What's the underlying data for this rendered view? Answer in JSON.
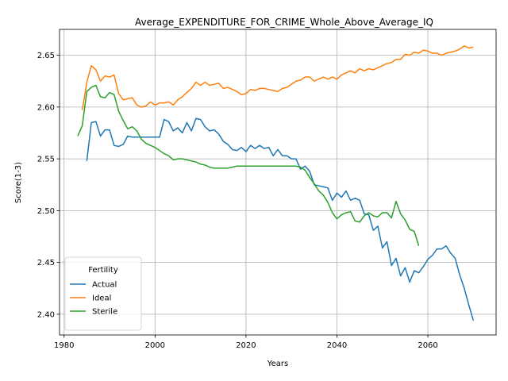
{
  "chart_data": {
    "type": "line",
    "title": "Average_EXPENDITURE_FOR_CRIME_Whole_Above_Average_IQ",
    "xlabel": "Years",
    "ylabel": "Score(1-3)",
    "xlim": [
      1979,
      2075
    ],
    "ylim": [
      2.38,
      2.675
    ],
    "xticks": [
      1980,
      2000,
      2020,
      2040,
      2060
    ],
    "yticks": [
      2.4,
      2.45,
      2.5,
      2.55,
      2.6,
      2.65
    ],
    "xtick_labels": [
      "1980",
      "2000",
      "2020",
      "2040",
      "2060"
    ],
    "ytick_labels": [
      "2.40",
      "2.45",
      "2.50",
      "2.55",
      "2.60",
      "2.65"
    ],
    "grid": true,
    "legend": {
      "title": "Fertility",
      "placement": "lower-left"
    },
    "series": [
      {
        "name": "Actual",
        "color": "#1f77b4",
        "x": [
          1985,
          1986,
          1987,
          1988,
          1989,
          1990,
          1991,
          1992,
          1993,
          1994,
          1995,
          1996,
          1997,
          1998,
          1999,
          2000,
          2001,
          2002,
          2003,
          2004,
          2005,
          2006,
          2007,
          2008,
          2009,
          2010,
          2011,
          2012,
          2013,
          2014,
          2015,
          2016,
          2017,
          2018,
          2019,
          2020,
          2021,
          2022,
          2023,
          2024,
          2025,
          2026,
          2027,
          2028,
          2029,
          2030,
          2031,
          2032,
          2033,
          2034,
          2035,
          2036,
          2037,
          2038,
          2039,
          2040,
          2041,
          2042,
          2043,
          2044,
          2045,
          2046,
          2047,
          2048,
          2049,
          2050,
          2051,
          2052,
          2053,
          2054,
          2055,
          2056,
          2057,
          2058,
          2059,
          2060,
          2061,
          2062,
          2063,
          2064,
          2065,
          2066,
          2067,
          2068,
          2069,
          2070
        ],
        "values": [
          2.548,
          2.585,
          2.586,
          2.572,
          2.578,
          2.578,
          2.563,
          2.562,
          2.564,
          2.572,
          2.571,
          2.571,
          2.571,
          2.571,
          2.571,
          2.571,
          2.571,
          2.588,
          2.586,
          2.577,
          2.58,
          2.575,
          2.585,
          2.577,
          2.589,
          2.588,
          2.581,
          2.577,
          2.578,
          2.574,
          2.567,
          2.564,
          2.559,
          2.558,
          2.561,
          2.557,
          2.563,
          2.56,
          2.563,
          2.56,
          2.561,
          2.553,
          2.559,
          2.553,
          2.553,
          2.55,
          2.55,
          2.54,
          2.543,
          2.538,
          2.525,
          2.524,
          2.523,
          2.522,
          2.51,
          2.517,
          2.513,
          2.519,
          2.51,
          2.512,
          2.51,
          2.497,
          2.496,
          2.481,
          2.485,
          2.464,
          2.47,
          2.447,
          2.454,
          2.437,
          2.445,
          2.431,
          2.442,
          2.44,
          2.446,
          2.453,
          2.457,
          2.463,
          2.463,
          2.466,
          2.459,
          2.454,
          2.438,
          2.425,
          2.409,
          2.394
        ]
      },
      {
        "name": "Ideal",
        "color": "#ff7f0e",
        "x": [
          1984,
          1985,
          1986,
          1987,
          1988,
          1989,
          1990,
          1991,
          1992,
          1993,
          1994,
          1995,
          1996,
          1997,
          1998,
          1999,
          2000,
          2001,
          2002,
          2003,
          2004,
          2005,
          2006,
          2007,
          2008,
          2009,
          2010,
          2011,
          2012,
          2013,
          2014,
          2015,
          2016,
          2017,
          2018,
          2019,
          2020,
          2021,
          2022,
          2023,
          2024,
          2025,
          2026,
          2027,
          2028,
          2029,
          2030,
          2031,
          2032,
          2033,
          2034,
          2035,
          2036,
          2037,
          2038,
          2039,
          2040,
          2041,
          2042,
          2043,
          2044,
          2045,
          2046,
          2047,
          2048,
          2049,
          2050,
          2051,
          2052,
          2053,
          2054,
          2055,
          2056,
          2057,
          2058,
          2059,
          2060,
          2061,
          2062,
          2063,
          2064,
          2065,
          2066,
          2067,
          2068,
          2069,
          2070
        ],
        "values": [
          2.597,
          2.624,
          2.64,
          2.636,
          2.625,
          2.63,
          2.629,
          2.631,
          2.613,
          2.607,
          2.608,
          2.609,
          2.602,
          2.6,
          2.601,
          2.605,
          2.602,
          2.604,
          2.604,
          2.605,
          2.602,
          2.607,
          2.61,
          2.614,
          2.618,
          2.624,
          2.621,
          2.624,
          2.621,
          2.622,
          2.623,
          2.618,
          2.619,
          2.617,
          2.615,
          2.612,
          2.613,
          2.617,
          2.616,
          2.618,
          2.618,
          2.617,
          2.616,
          2.615,
          2.618,
          2.619,
          2.622,
          2.625,
          2.626,
          2.629,
          2.629,
          2.625,
          2.627,
          2.629,
          2.627,
          2.629,
          2.627,
          2.631,
          2.633,
          2.635,
          2.633,
          2.637,
          2.635,
          2.637,
          2.636,
          2.638,
          2.64,
          2.642,
          2.643,
          2.646,
          2.646,
          2.651,
          2.65,
          2.653,
          2.652,
          2.655,
          2.654,
          2.652,
          2.652,
          2.65,
          2.652,
          2.653,
          2.654,
          2.656,
          2.659,
          2.657,
          2.658
        ]
      },
      {
        "name": "Sterile",
        "color": "#2ca02c",
        "x": [
          1983,
          1984,
          1985,
          1986,
          1987,
          1988,
          1989,
          1990,
          1991,
          1992,
          1993,
          1994,
          1995,
          1996,
          1997,
          1998,
          1999,
          2000,
          2001,
          2002,
          2003,
          2004,
          2005,
          2006,
          2007,
          2008,
          2009,
          2010,
          2011,
          2012,
          2013,
          2014,
          2015,
          2016,
          2017,
          2018,
          2019,
          2020,
          2021,
          2022,
          2023,
          2024,
          2025,
          2026,
          2027,
          2028,
          2029,
          2030,
          2031,
          2032,
          2033,
          2034,
          2035,
          2036,
          2037,
          2038,
          2039,
          2040,
          2041,
          2042,
          2043,
          2044,
          2045,
          2046,
          2047,
          2048,
          2049,
          2050,
          2051,
          2052,
          2053,
          2054,
          2055,
          2056,
          2057,
          2058
        ],
        "values": [
          2.572,
          2.582,
          2.615,
          2.619,
          2.621,
          2.61,
          2.609,
          2.614,
          2.612,
          2.596,
          2.587,
          2.579,
          2.581,
          2.577,
          2.569,
          2.565,
          2.563,
          2.561,
          2.558,
          2.555,
          2.553,
          2.549,
          2.55,
          2.55,
          2.549,
          2.548,
          2.547,
          2.545,
          2.544,
          2.542,
          2.541,
          2.541,
          2.541,
          2.541,
          2.542,
          2.543,
          2.543,
          2.543,
          2.543,
          2.543,
          2.543,
          2.543,
          2.543,
          2.543,
          2.543,
          2.543,
          2.543,
          2.543,
          2.543,
          2.542,
          2.539,
          2.532,
          2.526,
          2.519,
          2.515,
          2.508,
          2.498,
          2.492,
          2.496,
          2.498,
          2.499,
          2.49,
          2.489,
          2.495,
          2.498,
          2.495,
          2.494,
          2.498,
          2.498,
          2.493,
          2.509,
          2.497,
          2.491,
          2.482,
          2.48,
          2.466
        ]
      }
    ]
  }
}
